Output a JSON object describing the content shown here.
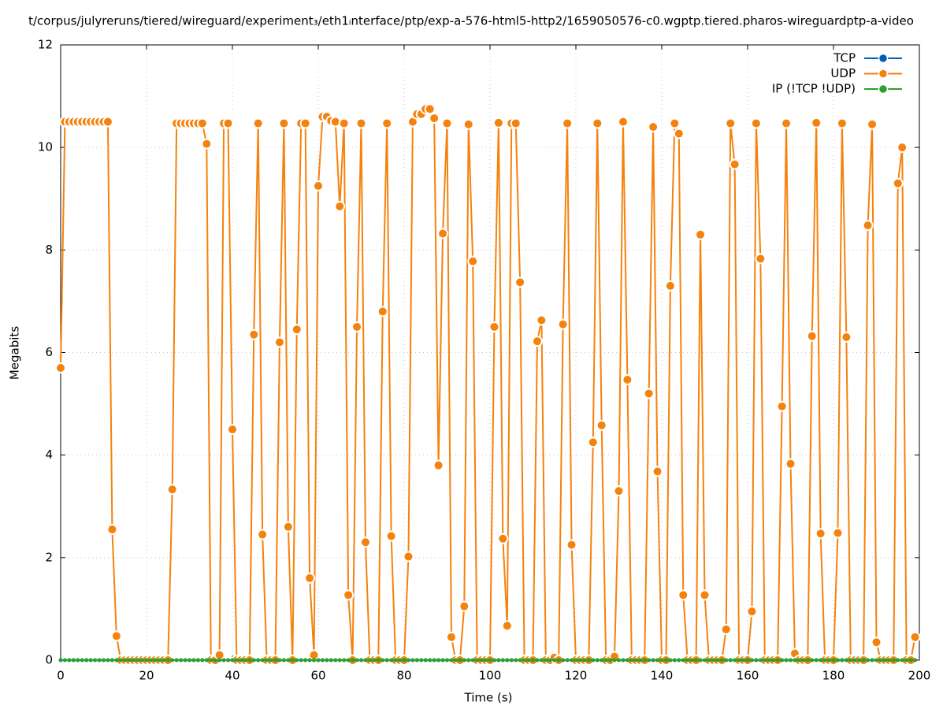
{
  "chart_data": {
    "type": "line",
    "title": "t/corpus/julyreruns/tiered/wireguard/experiment₃/eth1ᵢnterface/ptp/exp-a-576-html5-http2/1659050576-c0.wgptp.tiered.pharos-wireguardptp-a-video",
    "x_label": "Time (s)",
    "y_label": "Megabits",
    "xlim": [
      0,
      200
    ],
    "xticks": [
      0,
      20,
      40,
      60,
      80,
      100,
      120,
      140,
      160,
      180,
      200
    ],
    "ylim": [
      0,
      12
    ],
    "yticks": [
      0,
      2,
      4,
      6,
      8,
      10,
      12
    ],
    "grid": true,
    "legend": "upper right",
    "x": [
      0,
      1,
      2,
      3,
      4,
      5,
      6,
      7,
      8,
      9,
      10,
      11,
      12,
      13,
      14,
      15,
      16,
      17,
      18,
      19,
      20,
      21,
      22,
      23,
      24,
      25,
      26,
      27,
      28,
      29,
      30,
      31,
      32,
      33,
      34,
      35,
      36,
      37,
      38,
      39,
      40,
      41,
      42,
      43,
      44,
      45,
      46,
      47,
      48,
      49,
      50,
      51,
      52,
      53,
      54,
      55,
      56,
      57,
      58,
      59,
      60,
      61,
      62,
      63,
      64,
      65,
      66,
      67,
      68,
      69,
      70,
      71,
      72,
      73,
      74,
      75,
      76,
      77,
      78,
      79,
      80,
      81,
      82,
      83,
      84,
      85,
      86,
      87,
      88,
      89,
      90,
      91,
      92,
      93,
      94,
      95,
      96,
      97,
      98,
      99,
      100,
      101,
      102,
      103,
      104,
      105,
      106,
      107,
      108,
      109,
      110,
      111,
      112,
      113,
      114,
      115,
      116,
      117,
      118,
      119,
      120,
      121,
      122,
      123,
      124,
      125,
      126,
      127,
      128,
      129,
      130,
      131,
      132,
      133,
      134,
      135,
      136,
      137,
      138,
      139,
      140,
      141,
      142,
      143,
      144,
      145,
      146,
      147,
      148,
      149,
      150,
      151,
      152,
      153,
      154,
      155,
      156,
      157,
      158,
      159,
      160,
      161,
      162,
      163,
      164,
      165,
      166,
      167,
      168,
      169,
      170,
      171,
      172,
      173,
      174,
      175,
      176,
      177,
      178,
      179,
      180,
      181,
      182,
      183,
      184,
      185,
      186,
      187,
      188,
      189,
      190,
      191,
      192,
      193,
      194,
      195,
      196,
      197,
      198,
      199
    ],
    "series": [
      {
        "name": "TCP",
        "color": "#0060ad",
        "values": [
          0,
          0,
          0,
          0,
          0,
          0,
          0,
          0,
          0,
          0,
          0,
          0,
          0,
          0,
          0,
          0,
          0,
          0,
          0,
          0,
          0,
          0,
          0,
          0,
          0,
          0,
          0,
          0,
          0,
          0,
          0,
          0,
          0,
          0,
          0,
          0,
          0,
          0,
          0,
          0,
          0,
          0,
          0,
          0,
          0,
          0,
          0,
          0,
          0,
          0,
          0,
          0,
          0,
          0,
          0,
          0,
          0,
          0,
          0,
          0,
          0,
          0,
          0,
          0,
          0,
          0,
          0,
          0,
          0,
          0,
          0,
          0,
          0,
          0,
          0,
          0,
          0,
          0,
          0,
          0,
          0,
          0,
          0,
          0,
          0,
          0,
          0,
          0,
          0,
          0,
          0,
          0,
          0,
          0,
          0,
          0,
          0,
          0,
          0,
          0,
          0,
          0,
          0,
          0,
          0,
          0,
          0,
          0,
          0,
          0,
          0,
          0,
          0,
          0,
          0,
          0,
          0,
          0,
          0,
          0,
          0,
          0,
          0,
          0,
          0,
          0,
          0,
          0,
          0,
          0,
          0,
          0,
          0,
          0,
          0,
          0,
          0,
          0,
          0,
          0,
          0,
          0,
          0,
          0,
          0,
          0,
          0,
          0,
          0,
          0,
          0,
          0,
          0,
          0,
          0,
          0,
          0,
          0,
          0,
          0,
          0,
          0,
          0,
          0,
          0,
          0,
          0,
          0,
          0,
          0,
          0,
          0,
          0,
          0,
          0,
          0,
          0,
          0,
          0,
          0,
          0,
          0,
          0,
          0,
          0,
          0,
          0,
          0,
          0,
          0,
          0,
          0,
          0,
          0,
          0,
          0,
          0,
          0,
          0,
          0
        ]
      },
      {
        "name": "UDP",
        "color": "#f5820d",
        "values": [
          5.7,
          10.5,
          10.5,
          10.5,
          10.5,
          10.5,
          10.5,
          10.5,
          10.5,
          10.5,
          10.5,
          10.5,
          2.55,
          0.47,
          0,
          0,
          0,
          0,
          0,
          0,
          0,
          0,
          0,
          0,
          0,
          0,
          3.33,
          10.47,
          10.47,
          10.47,
          10.47,
          10.47,
          10.47,
          10.47,
          10.07,
          0,
          0,
          0.1,
          10.47,
          10.47,
          4.5,
          0,
          0,
          0,
          0,
          6.35,
          10.47,
          2.45,
          0,
          0,
          0,
          6.2,
          10.47,
          2.6,
          0,
          6.45,
          10.47,
          10.47,
          1.6,
          0.1,
          9.25,
          10.6,
          10.6,
          10.52,
          10.5,
          8.85,
          10.47,
          1.27,
          0,
          6.5,
          10.47,
          2.3,
          0,
          0,
          0,
          6.8,
          10.47,
          2.42,
          0,
          0,
          0,
          2.02,
          10.5,
          10.65,
          10.65,
          10.75,
          10.75,
          10.57,
          3.8,
          8.32,
          10.47,
          0.45,
          0,
          0,
          1.05,
          10.45,
          7.78,
          0,
          0,
          0,
          0,
          6.5,
          10.48,
          2.37,
          0.67,
          10.47,
          10.47,
          7.37,
          0,
          0,
          0,
          6.22,
          6.63,
          0,
          0,
          0.05,
          0,
          6.55,
          10.47,
          2.25,
          0,
          0,
          0,
          0,
          4.25,
          10.47,
          4.58,
          0,
          0,
          0.07,
          3.3,
          10.5,
          5.47,
          0,
          0,
          0,
          0,
          5.2,
          10.4,
          3.68,
          0,
          0,
          7.3,
          10.47,
          10.27,
          1.27,
          0,
          0,
          0,
          8.3,
          1.27,
          0,
          0,
          0,
          0,
          0.6,
          10.47,
          9.67,
          0,
          0,
          0,
          0.95,
          10.47,
          7.83,
          0,
          0,
          0,
          0,
          4.95,
          10.47,
          3.83,
          0.13,
          0,
          0,
          0,
          6.32,
          10.48,
          2.47,
          0,
          0,
          0,
          2.48,
          10.47,
          6.3,
          0,
          0,
          0,
          0,
          8.48,
          10.45,
          0.35,
          0,
          0,
          0,
          0,
          9.3,
          10,
          0,
          0,
          0.45
        ]
      },
      {
        "name": "IP (!TCP  !UDP)",
        "color": "#2ca02c",
        "values": [
          0,
          0,
          0,
          0,
          0,
          0,
          0,
          0,
          0,
          0,
          0,
          0,
          0,
          0,
          0,
          0,
          0,
          0,
          0,
          0,
          0,
          0,
          0,
          0,
          0,
          0,
          0,
          0,
          0,
          0,
          0,
          0,
          0,
          0,
          0,
          0,
          0,
          0,
          0,
          0,
          0,
          0,
          0,
          0,
          0,
          0,
          0,
          0,
          0,
          0,
          0,
          0,
          0,
          0,
          0,
          0,
          0,
          0,
          0,
          0,
          0,
          0,
          0,
          0,
          0,
          0,
          0,
          0,
          0,
          0,
          0,
          0,
          0,
          0,
          0,
          0,
          0,
          0,
          0,
          0,
          0,
          0,
          0,
          0,
          0,
          0,
          0,
          0,
          0,
          0,
          0,
          0,
          0,
          0,
          0,
          0,
          0,
          0,
          0,
          0,
          0,
          0,
          0,
          0,
          0,
          0,
          0,
          0,
          0,
          0,
          0,
          0,
          0,
          0,
          0,
          0,
          0,
          0,
          0,
          0,
          0,
          0,
          0,
          0,
          0,
          0,
          0,
          0,
          0,
          0,
          0,
          0,
          0,
          0,
          0,
          0,
          0,
          0,
          0,
          0,
          0,
          0,
          0,
          0,
          0,
          0,
          0,
          0,
          0,
          0,
          0,
          0,
          0,
          0,
          0,
          0,
          0,
          0,
          0,
          0,
          0,
          0,
          0,
          0,
          0,
          0,
          0,
          0,
          0,
          0,
          0,
          0,
          0,
          0,
          0,
          0,
          0,
          0,
          0,
          0,
          0,
          0,
          0,
          0,
          0,
          0,
          0,
          0,
          0,
          0,
          0,
          0,
          0,
          0,
          0,
          0,
          0,
          0,
          0,
          0
        ]
      }
    ]
  }
}
